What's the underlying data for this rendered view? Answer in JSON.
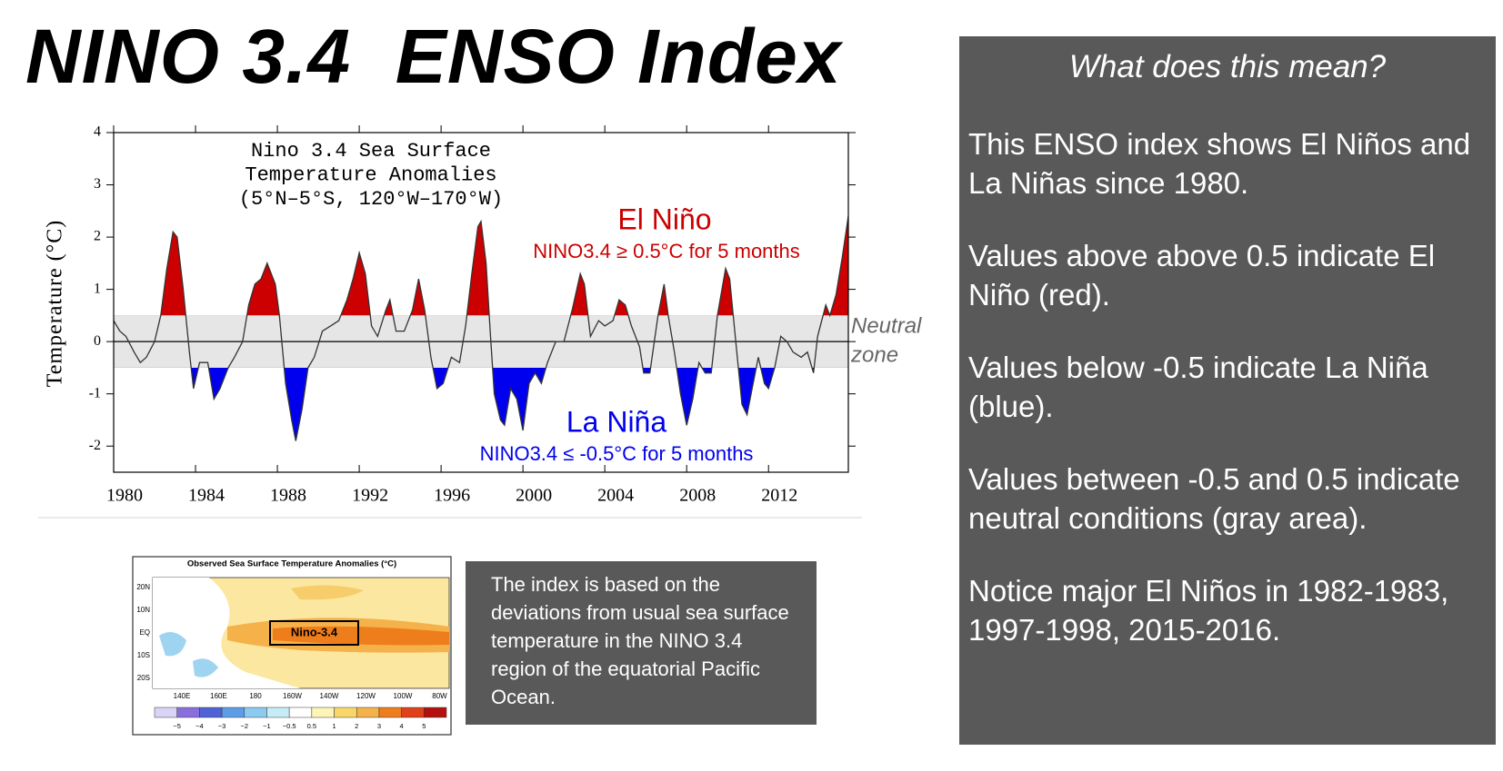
{
  "header": {
    "title": "NINO 3.4  ENSO Index"
  },
  "chart_data": {
    "type": "line",
    "title": [
      "Nino 3.4 Sea Surface",
      "Temperature Anomalies",
      "(5°N–5°S, 120°W–170°W)"
    ],
    "y_label": "Temperature (°C)",
    "xlim": [
      1980,
      2015.9
    ],
    "xticks": [
      1980,
      1984,
      1988,
      1992,
      1996,
      2000,
      2004,
      2008,
      2012
    ],
    "ylim": [
      -2.5,
      4
    ],
    "yticks": [
      -2,
      -1,
      0,
      1,
      2,
      3,
      4
    ],
    "color": "#333333",
    "above_color": "#cc0000",
    "below_color": "#0000ee",
    "neutral_band": [
      -0.5,
      0.5
    ],
    "neutral_color": "#e6e6e6",
    "neutral_label": [
      "Neutral",
      "zone"
    ],
    "el_nino": {
      "label": "El Niño",
      "rule": "NINO3.4 ≥ 0.5°C for 5 months",
      "color": "#cc0000"
    },
    "la_nina": {
      "label": "La Niña",
      "rule": "NINO3.4 ≤ -0.5°C for 5 months",
      "color": "#0000ee"
    },
    "x": [
      1980.0,
      1980.3,
      1980.6,
      1981.0,
      1981.3,
      1981.6,
      1982.0,
      1982.3,
      1982.6,
      1982.9,
      1983.1,
      1983.4,
      1983.7,
      1983.9,
      1984.2,
      1984.6,
      1984.9,
      1985.2,
      1985.6,
      1985.9,
      1986.3,
      1986.6,
      1986.9,
      1987.2,
      1987.5,
      1987.9,
      1988.1,
      1988.4,
      1988.7,
      1988.9,
      1989.2,
      1989.5,
      1989.8,
      1990.2,
      1990.6,
      1991.0,
      1991.4,
      1991.7,
      1992.0,
      1992.3,
      1992.6,
      1992.9,
      1993.3,
      1993.5,
      1993.8,
      1994.2,
      1994.6,
      1994.9,
      1995.2,
      1995.5,
      1995.8,
      1996.1,
      1996.5,
      1996.9,
      1997.2,
      1997.5,
      1997.8,
      1997.95,
      1998.2,
      1998.4,
      1998.6,
      1998.9,
      1999.1,
      1999.4,
      1999.7,
      2000.0,
      2000.3,
      2000.6,
      2000.9,
      2001.2,
      2001.6,
      2002.0,
      2002.4,
      2002.8,
      2003.0,
      2003.3,
      2003.7,
      2004.0,
      2004.4,
      2004.7,
      2005.0,
      2005.3,
      2005.7,
      2005.9,
      2006.2,
      2006.6,
      2006.9,
      2007.1,
      2007.4,
      2007.7,
      2008.0,
      2008.3,
      2008.6,
      2008.9,
      2009.2,
      2009.5,
      2009.9,
      2010.1,
      2010.4,
      2010.7,
      2010.95,
      2011.2,
      2011.5,
      2011.8,
      2012.0,
      2012.3,
      2012.6,
      2012.9,
      2013.2,
      2013.6,
      2013.9,
      2014.2,
      2014.4,
      2014.8,
      2015.0,
      2015.3,
      2015.6,
      2015.9
    ],
    "values": [
      0.4,
      0.2,
      0.1,
      -0.2,
      -0.4,
      -0.3,
      0.0,
      0.5,
      1.4,
      2.1,
      2.0,
      1.0,
      -0.2,
      -0.9,
      -0.4,
      -0.4,
      -1.1,
      -0.9,
      -0.5,
      -0.3,
      0.0,
      0.7,
      1.1,
      1.2,
      1.5,
      1.1,
      0.5,
      -0.8,
      -1.5,
      -1.9,
      -1.3,
      -0.5,
      -0.3,
      0.2,
      0.3,
      0.4,
      0.8,
      1.2,
      1.7,
      1.3,
      0.3,
      0.1,
      0.6,
      0.8,
      0.2,
      0.2,
      0.6,
      1.2,
      0.6,
      -0.3,
      -0.9,
      -0.8,
      -0.3,
      -0.4,
      0.3,
      1.3,
      2.2,
      2.3,
      1.5,
      0.2,
      -1.0,
      -1.5,
      -1.6,
      -0.9,
      -1.1,
      -1.7,
      -0.8,
      -0.6,
      -0.8,
      -0.4,
      0.0,
      0.0,
      0.6,
      1.3,
      1.1,
      0.1,
      0.4,
      0.3,
      0.4,
      0.8,
      0.7,
      0.3,
      -0.1,
      -0.6,
      -0.6,
      0.5,
      1.1,
      0.5,
      -0.2,
      -1.0,
      -1.6,
      -1.1,
      -0.4,
      -0.6,
      -0.6,
      0.5,
      1.4,
      1.2,
      0.0,
      -1.2,
      -1.4,
      -0.9,
      -0.3,
      -0.8,
      -0.9,
      -0.5,
      0.1,
      0.0,
      -0.2,
      -0.3,
      -0.2,
      -0.6,
      0.1,
      0.7,
      0.5,
      0.9,
      1.6,
      2.4
    ]
  },
  "sst_map": {
    "title": "Observed Sea Surface Temperature Anomalies (°C)",
    "box_label": "Nino-3.4",
    "lat_labels": [
      "20N",
      "10N",
      "EQ",
      "10S",
      "20S"
    ],
    "lon_labels": [
      "140E",
      "160E",
      "180",
      "160W",
      "140W",
      "120W",
      "100W",
      "80W"
    ],
    "colorbar_labels": [
      "−5",
      "−4",
      "−3",
      "−2",
      "−1",
      "−0.5",
      "0.5",
      "1",
      "2",
      "3",
      "4",
      "5"
    ]
  },
  "index_note": "The index is based on the deviations from usual sea surface temperature in the NINO 3.4 region of the equatorial Pacific Ocean.",
  "explanation": {
    "heading": "What does this mean?",
    "paragraphs": [
      "This ENSO index shows El Niños and  La Niñas since 1980.",
      "Values above above 0.5 indicate El Niño (red).",
      "Values below -0.5 indicate La Niña (blue).",
      "Values between -0.5 and 0.5 indicate neutral conditions (gray area).",
      "Notice major El Niños in 1982-1983, 1997-1998, 2015-2016."
    ]
  }
}
